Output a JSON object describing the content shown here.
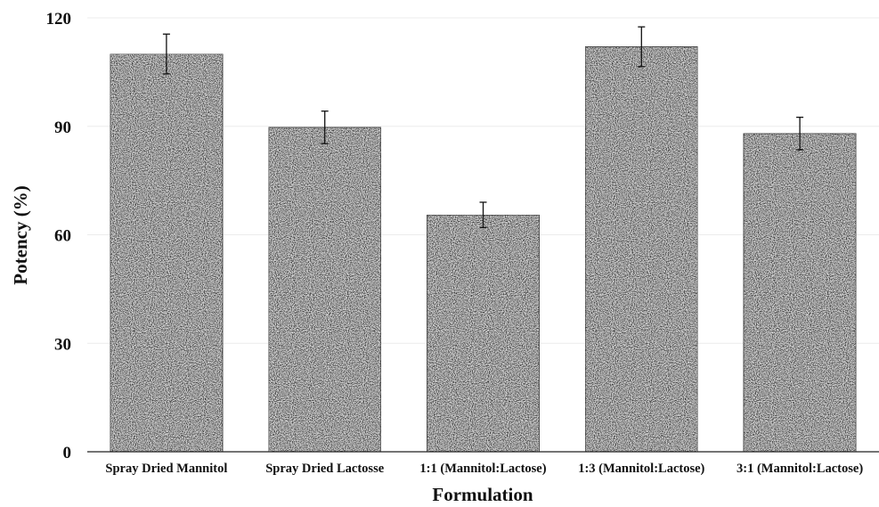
{
  "chart_data": {
    "type": "bar",
    "title": "",
    "xlabel": "Formulation",
    "ylabel": "Potency (%)",
    "ylim": [
      0,
      120
    ],
    "yticks": [
      0,
      30,
      60,
      90,
      120
    ],
    "categories": [
      "Spray Dried Mannitol",
      "Spray Dried Lactosse",
      "1:1 (Mannitol:Lactose)",
      "1:3 (Mannitol:Lactose)",
      "3:1 (Mannitol:Lactose)"
    ],
    "values": [
      110,
      89.7,
      65.5,
      112,
      88
    ],
    "errors": [
      5.5,
      4.5,
      3.5,
      5.5,
      4.5
    ],
    "grid": true,
    "legend": "none",
    "colors": {
      "bar_texture_dark": "#3a3a3a",
      "bar_texture_light": "#d8d8d8",
      "bar_border": "#555555",
      "grid": "#ececec",
      "axis": "#222222"
    }
  }
}
